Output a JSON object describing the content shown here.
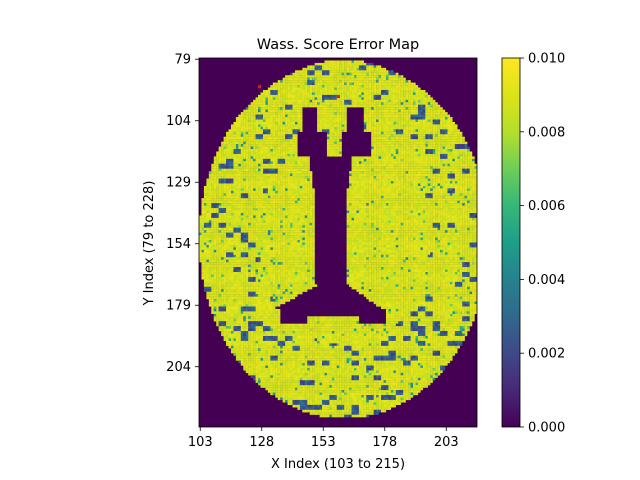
{
  "chart_data": {
    "type": "heatmap",
    "title": "Wass. Score Error Map",
    "xlabel": "X Index (103 to 215)",
    "ylabel": "Y Index (79 to 228)",
    "xlim": [
      103,
      215
    ],
    "ylim": [
      79,
      228
    ],
    "y_inverted": true,
    "x_ticks": [
      103,
      128,
      153,
      178,
      203
    ],
    "x_tick_labels": [
      "103",
      "128",
      "153",
      "178",
      "203"
    ],
    "y_ticks": [
      79,
      104,
      129,
      154,
      179,
      204
    ],
    "y_tick_labels": [
      "79",
      "104",
      "129",
      "154",
      "179",
      "204"
    ],
    "colormap": "viridis",
    "colorbar": {
      "range": [
        0.0,
        0.01
      ],
      "ticks": [
        0.0,
        0.002,
        0.004,
        0.006,
        0.008,
        0.01
      ],
      "tick_labels": [
        "0.000",
        "0.002",
        "0.004",
        "0.006",
        "0.008",
        "0.010"
      ]
    },
    "regions": [
      {
        "name": "background",
        "value": 0.0
      },
      {
        "name": "brain tissue",
        "value": 0.0095
      },
      {
        "name": "ventricles",
        "value": 0.0
      },
      {
        "name": "sulci",
        "value": 0.0015
      }
    ],
    "outliers": [
      {
        "x": 127,
        "y": 90,
        "color": "#e31a1c"
      },
      {
        "x": 159,
        "y": 94,
        "color": "#e31a1c"
      }
    ],
    "grid": false,
    "legend": "colorbar right"
  },
  "colors": {
    "viridis_min": "#440154",
    "viridis_max": "#fde725",
    "outlier": "#e31a1c"
  }
}
